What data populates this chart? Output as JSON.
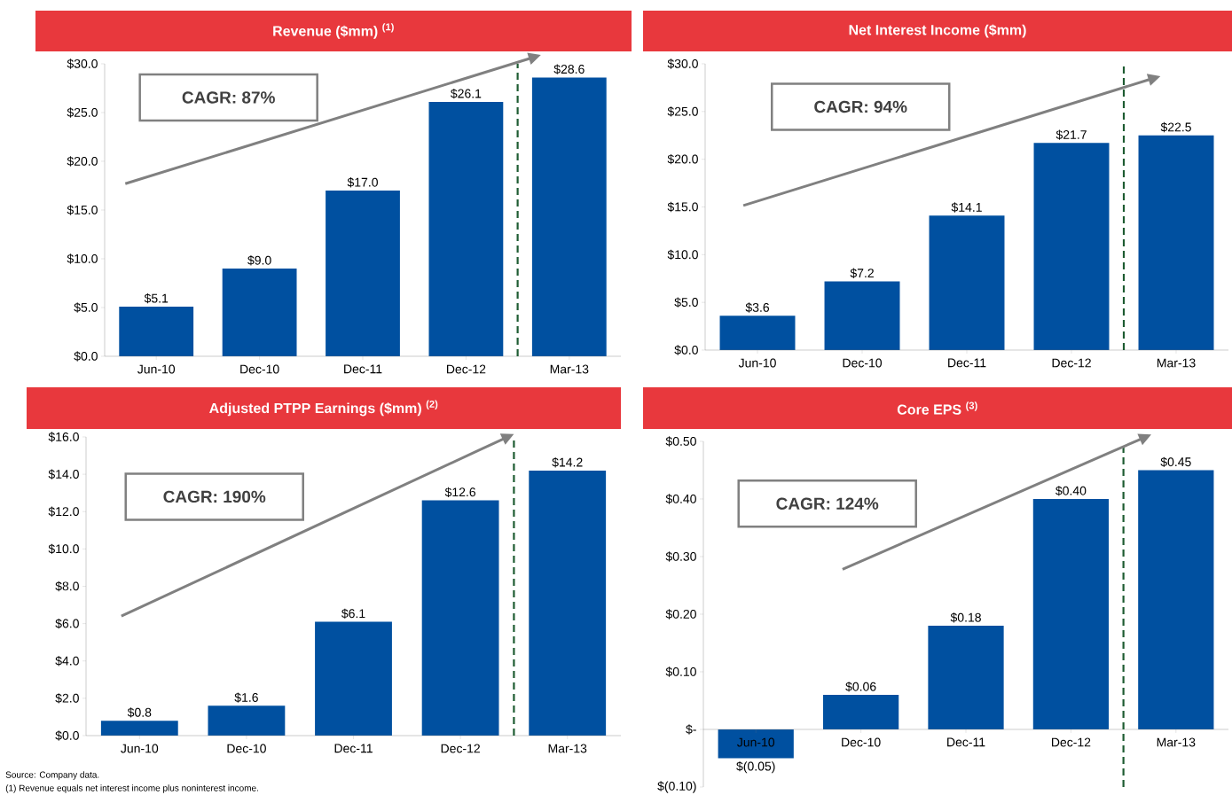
{
  "chart_data": [
    {
      "type": "bar",
      "title": "Revenue ($mm) $^{(1)}$",
      "categories": [
        "Jun-10",
        "Dec-10",
        "Dec-11",
        "Dec-12",
        "Mar-13"
      ],
      "values": [
        5.1,
        9.0,
        17.0,
        26.1,
        28.6
      ],
      "value_labels": [
        "$5.1",
        "$9.0",
        "$17.0",
        "$26.1",
        "$28.6"
      ],
      "color": "#0050a0",
      "ylim": [
        0,
        30
      ],
      "yticks": [
        {
          "value": 0,
          "label": "$0.0"
        },
        {
          "value": 5,
          "label": "$5.0"
        },
        {
          "value": 10,
          "label": "$10.0"
        },
        {
          "value": 15,
          "label": "$15.0"
        },
        {
          "value": 20,
          "label": "$20.0"
        },
        {
          "value": 25,
          "label": "$25.0"
        },
        {
          "value": 30,
          "label": "$30.0"
        }
      ],
      "annotations": [
        "CAGR: 87%"
      ]
    },
    {
      "type": "bar",
      "title": "Net Interest Income ($mm)",
      "categories": [
        "Jun-10",
        "Dec-10",
        "Dec-11",
        "Dec-12",
        "Mar-13"
      ],
      "values": [
        3.6,
        7.2,
        14.1,
        21.7,
        22.5
      ],
      "value_labels": [
        "$3.6",
        "$7.2",
        "$14.1",
        "$21.7",
        "$22.5"
      ],
      "color": "#0050a0",
      "ylim": [
        0,
        30
      ],
      "yticks": [
        {
          "value": 0,
          "label": "$0.0"
        },
        {
          "value": 5,
          "label": "$5.0"
        },
        {
          "value": 10,
          "label": "$10.0"
        },
        {
          "value": 15,
          "label": "$15.0"
        },
        {
          "value": 20,
          "label": "$20.0"
        },
        {
          "value": 25,
          "label": "$25.0"
        },
        {
          "value": 30,
          "label": "$30.0"
        }
      ],
      "annotations": [
        "CAGR: 94%"
      ]
    },
    {
      "type": "bar",
      "title": "Adjusted PTPP Earnings ($mm) $^{(2)}$",
      "categories": [
        "Jun-10",
        "Dec-10",
        "Dec-11",
        "Dec-12",
        "Mar-13"
      ],
      "values": [
        0.8,
        1.6,
        6.1,
        12.6,
        14.2
      ],
      "value_labels": [
        "$0.8",
        "$1.6",
        "$6.1",
        "$12.6",
        "$14.2"
      ],
      "color": "#0050a0",
      "ylim": [
        0,
        16
      ],
      "yticks": [
        {
          "value": 0,
          "label": "$0.0"
        },
        {
          "value": 2,
          "label": "$2.0"
        },
        {
          "value": 4,
          "label": "$4.0"
        },
        {
          "value": 6,
          "label": "$6.0"
        },
        {
          "value": 8,
          "label": "$8.0"
        },
        {
          "value": 10,
          "label": "$10.0"
        },
        {
          "value": 12,
          "label": "$12.0"
        },
        {
          "value": 14,
          "label": "$14.0"
        },
        {
          "value": 16,
          "label": "$16.0"
        }
      ],
      "annotations": [
        "CAGR: 190%",
        "Source: Company data.",
        "(1) Revenue equals net interest income plus noninterest income."
      ]
    },
    {
      "type": "bar",
      "title": "Core EPS $^{(3)}$",
      "categories": [
        "Jun-10",
        "Dec-10",
        "Dec-11",
        "Dec-12",
        "Mar-13"
      ],
      "values": [
        -0.05,
        0.06,
        0.18,
        0.4,
        0.45
      ],
      "value_labels": [
        "$(0.05)",
        "$0.06",
        "$0.18",
        "$0.40",
        "$0.45"
      ],
      "color": "#0050a0",
      "ylim": [
        -0.1,
        0.5
      ],
      "yticks": [
        {
          "value": -0.1,
          "label": "$(0.10)"
        },
        {
          "value": 0,
          "label": "$-"
        },
        {
          "value": 0.1,
          "label": "$0.10"
        },
        {
          "value": 0.2,
          "label": "$0.20"
        },
        {
          "value": 0.3,
          "label": "$0.30"
        },
        {
          "value": 0.4,
          "label": "$0.40"
        },
        {
          "value": 0.5,
          "label": "$0.50"
        }
      ],
      "annotations": [
        "CAGR: 124%"
      ]
    }
  ]
}
